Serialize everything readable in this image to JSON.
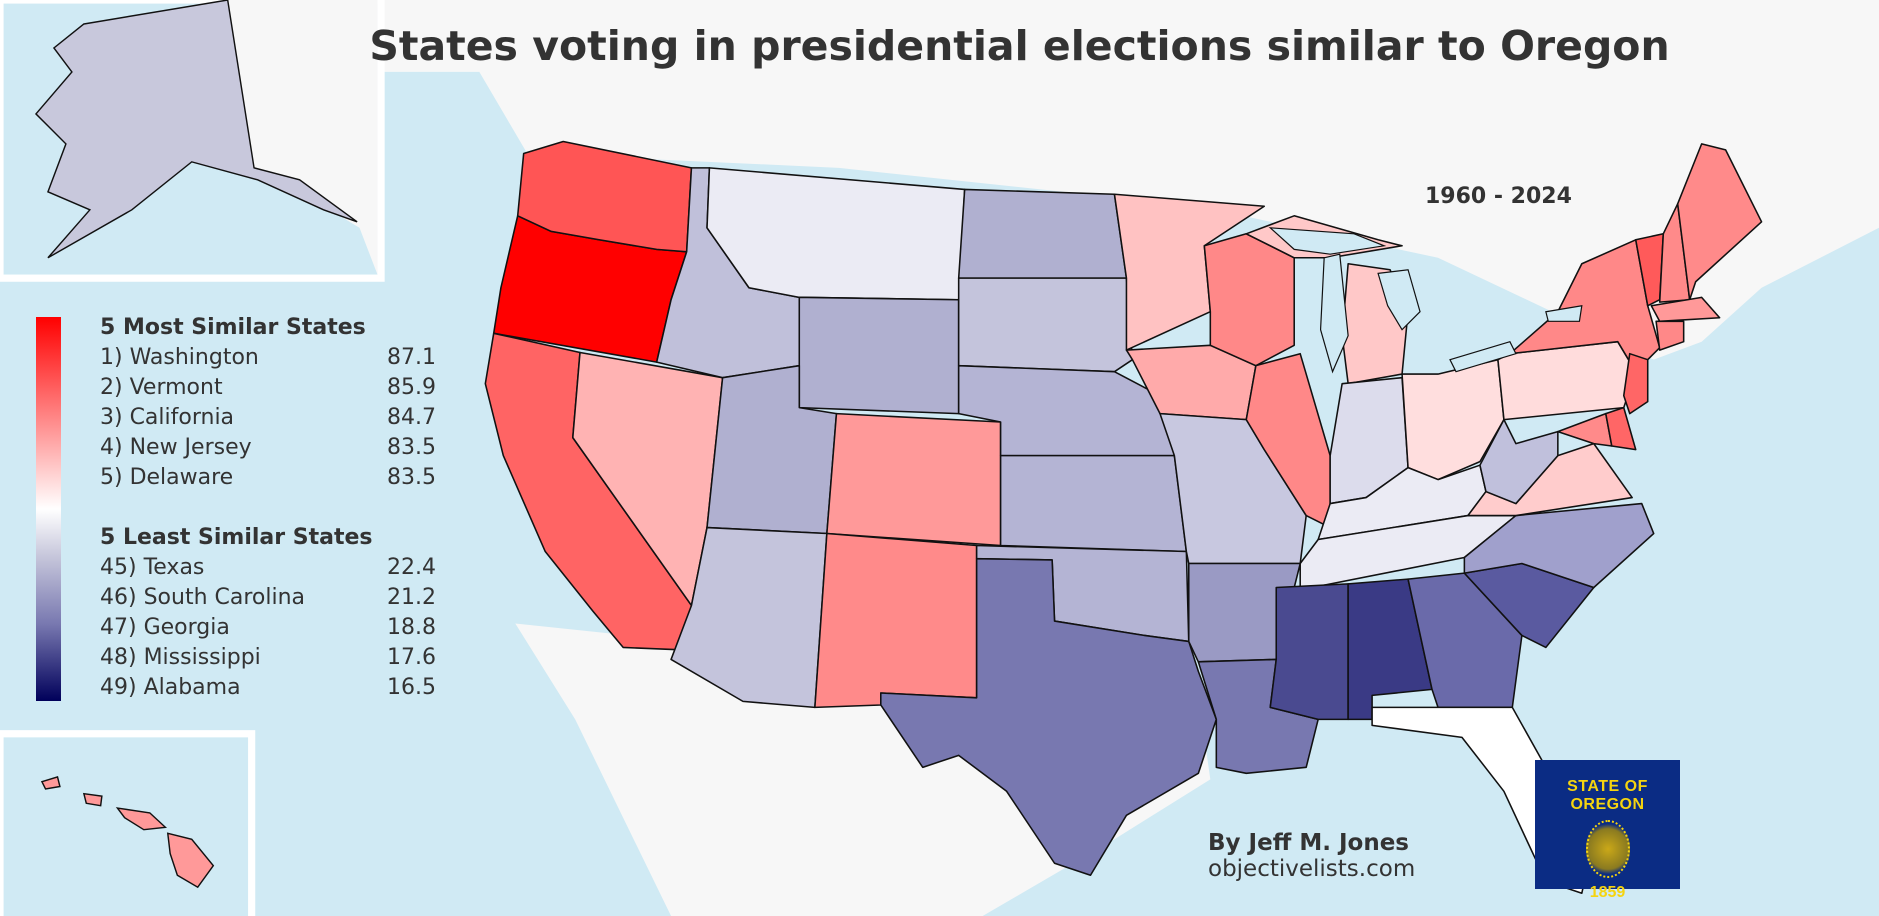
{
  "title": "States voting in presidential elections similar to Oregon",
  "period": "1960 - 2024",
  "colors": {
    "water": "#d0eaf4",
    "land": "#f7f7f7",
    "most_similar": "#ff0000",
    "neutral": "#ffffff",
    "least_similar": "#00005a"
  },
  "legend": {
    "most_heading": "5 Most Similar States",
    "most": [
      {
        "label": "1) Washington",
        "value": "87.1"
      },
      {
        "label": "2) Vermont",
        "value": "85.9"
      },
      {
        "label": "3) California",
        "value": "84.7"
      },
      {
        "label": "4) New Jersey",
        "value": "83.5"
      },
      {
        "label": "5) Delaware",
        "value": "83.5"
      }
    ],
    "least_heading": "5 Least Similar States",
    "least": [
      {
        "label": "45) Texas",
        "value": "22.4"
      },
      {
        "label": "46) South Carolina",
        "value": "21.2"
      },
      {
        "label": "47) Georgia",
        "value": "18.8"
      },
      {
        "label": "48) Mississippi",
        "value": "17.6"
      },
      {
        "label": "49) Alabama",
        "value": "16.5"
      }
    ]
  },
  "credit": {
    "author": "By Jeff M. Jones",
    "site": "objectivelists.com"
  },
  "flag": {
    "text": "STATE OF OREGON",
    "year": "1859"
  },
  "states": {
    "OR": "#ff0000",
    "WA": "#ff5555",
    "CA": "#ff6464",
    "NV": "#ffb3b3",
    "ID": "#c0c0da",
    "MT": "#ebebf4",
    "WY": "#b0b0d0",
    "UT": "#b0b0d0",
    "CO": "#ff9999",
    "AZ": "#c4c4dc",
    "NM": "#ff8a8a",
    "ND": "#b0b0d0",
    "SD": "#c4c4dc",
    "NE": "#b4b4d4",
    "KS": "#b4b4d4",
    "OK": "#b4b4d4",
    "TX": "#7878b0",
    "MN": "#ffc2c2",
    "IA": "#ffaaaa",
    "MO": "#c8c8e0",
    "AR": "#9a9ac4",
    "LA": "#7878b0",
    "WI": "#ff8888",
    "IL": "#ff8888",
    "MI": "#ffc8c8",
    "IN": "#dcdcec",
    "OH": "#ffdede",
    "KY": "#ebebf4",
    "TN": "#ebebf4",
    "MS": "#4a4a90",
    "AL": "#3a3a85",
    "GA": "#6a6aaa",
    "FL": "#ffffff",
    "SC": "#5a5aa0",
    "NC": "#a0a0cc",
    "VA": "#ffcccc",
    "WV": "#c0c0dc",
    "PA": "#ffdcdc",
    "NY": "#ff8888",
    "VT": "#ff5a5a",
    "NH": "#ff8a8a",
    "ME": "#ff8a8a",
    "MA": "#ff9999",
    "CT": "#ff8888",
    "NJ": "#ff6666",
    "MD": "#ff8a8a",
    "DE": "#ff6666",
    "AK": "#c8c8dc",
    "HI": "#ff9999"
  }
}
